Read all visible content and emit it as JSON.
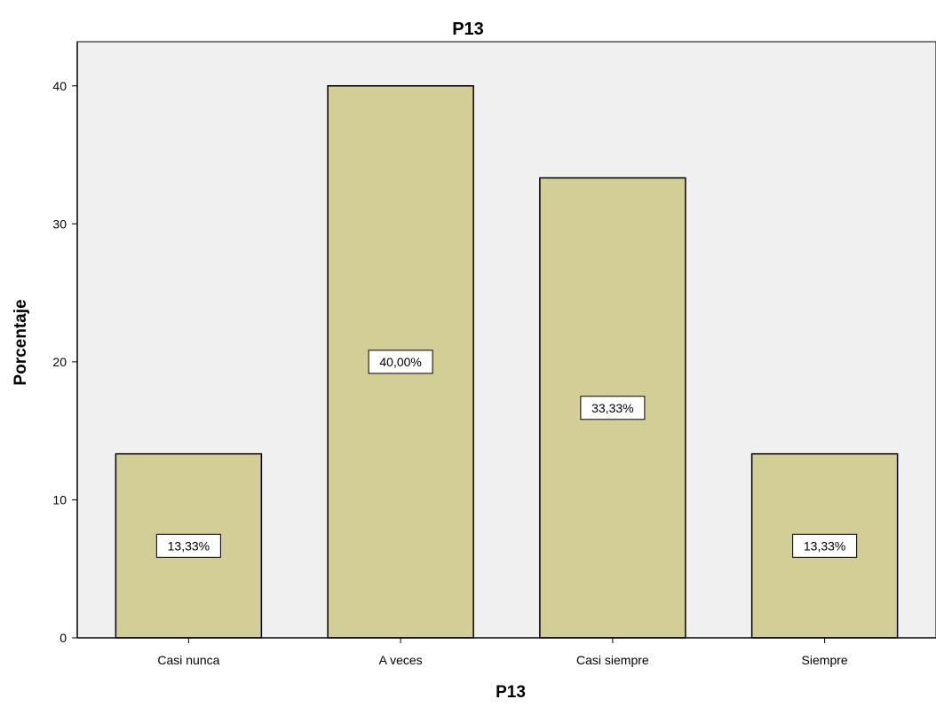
{
  "chart_data": {
    "type": "bar",
    "title": "P13",
    "xlabel": "P13",
    "ylabel": "Porcentaje",
    "categories": [
      "Casi nunca",
      "A veces",
      "Casi siempre",
      "Siempre"
    ],
    "values": [
      13.33,
      40.0,
      33.33,
      13.33
    ],
    "data_labels": [
      "13,33%",
      "40,00%",
      "33,33%",
      "13,33%"
    ],
    "y_ticks": [
      0,
      10,
      20,
      30,
      40
    ],
    "ylim": [
      0,
      43.2
    ],
    "grid": false,
    "legend": "none",
    "colors": {
      "bar_fill": "#d3cd96",
      "bar_stroke": "#000000",
      "plot_background": "#f0f0f0",
      "label_box_fill": "#ffffff"
    }
  }
}
